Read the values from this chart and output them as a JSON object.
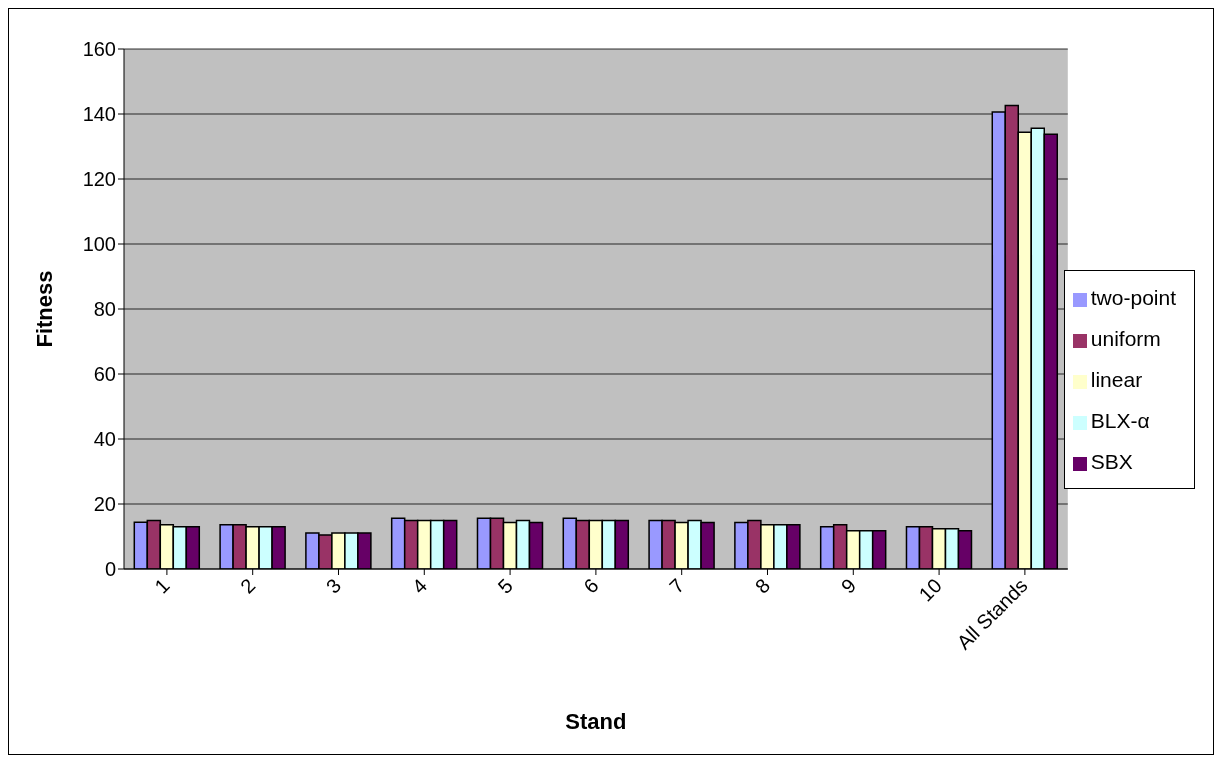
{
  "chart_data": {
    "type": "bar",
    "xlabel": "Stand",
    "ylabel": "Fitness",
    "categories": [
      "1",
      "2",
      "3",
      "4",
      "5",
      "6",
      "7",
      "8",
      "9",
      "10",
      "All Stands"
    ],
    "series": [
      {
        "name": "two-point",
        "color": "#9999ff",
        "values": [
          14.4,
          13.6,
          11.1,
          15.6,
          15.6,
          15.6,
          14.9,
          14.3,
          13.0,
          13.0,
          140.6
        ]
      },
      {
        "name": "uniform",
        "color": "#993366",
        "values": [
          14.9,
          13.6,
          10.5,
          14.9,
          15.6,
          14.9,
          14.9,
          14.9,
          13.6,
          13.0,
          142.6
        ]
      },
      {
        "name": "linear",
        "color": "#ffffcc",
        "values": [
          13.6,
          13.0,
          11.1,
          14.9,
          14.3,
          14.9,
          14.3,
          13.6,
          11.8,
          12.4,
          134.4
        ]
      },
      {
        "name": "BLX-α",
        "color": "#ccffff",
        "values": [
          13.0,
          13.0,
          11.1,
          14.9,
          14.9,
          14.9,
          14.9,
          13.6,
          11.8,
          12.4,
          135.6
        ]
      },
      {
        "name": "SBX",
        "color": "#660066",
        "values": [
          13.0,
          13.0,
          11.1,
          14.9,
          14.3,
          14.9,
          14.3,
          13.6,
          11.8,
          11.8,
          133.8
        ]
      }
    ],
    "ylim": [
      0,
      160
    ],
    "yticks": [
      0,
      20,
      40,
      60,
      80,
      100,
      120,
      140,
      160
    ],
    "grid": "y",
    "legend": "right"
  }
}
